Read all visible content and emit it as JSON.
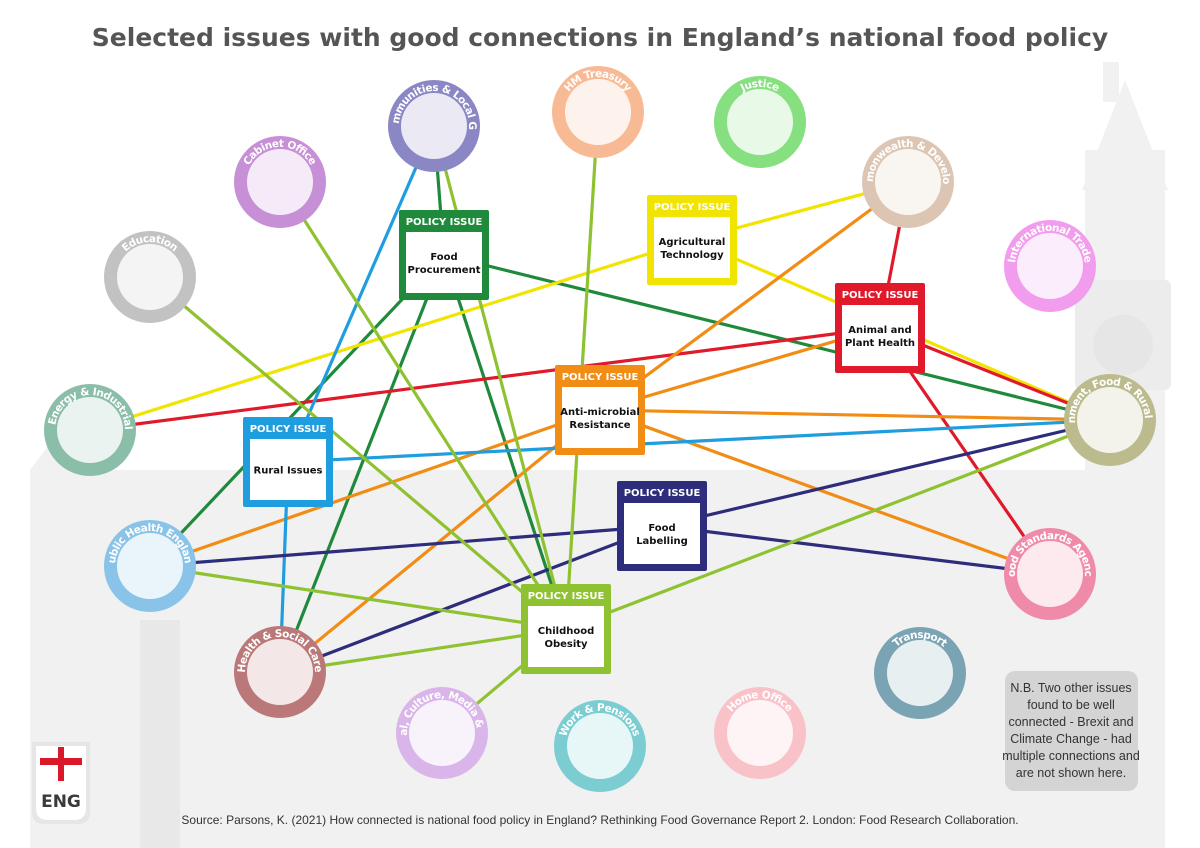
{
  "title": "Selected issues with good connections in England’s national food policy",
  "heading_label": "POLICY ISSUE",
  "departments": [
    {
      "id": "cabinet",
      "label": "Cabinet Office",
      "color": "#c78fd6"
    },
    {
      "id": "housing",
      "label": "Housing, Communities & Local Government",
      "color": "#8a87c4"
    },
    {
      "id": "treasury",
      "label": "HM Treasury",
      "color": "#f8ba94"
    },
    {
      "id": "justice",
      "label": "Justice",
      "color": "#86e07f"
    },
    {
      "id": "fcdo",
      "label": "Foreign, Commonwealth & Development Office",
      "color": "#dcc5b3"
    },
    {
      "id": "education",
      "label": "Education",
      "color": "#c2c2c2"
    },
    {
      "id": "trade",
      "label": "International Trade",
      "color": "#f19ced"
    },
    {
      "id": "beis",
      "label": "Business, Energy & Industrial Strategy",
      "color": "#8bbea8"
    },
    {
      "id": "defra",
      "label": "Environment, Food & Rural Affairs",
      "color": "#bcbb8e"
    },
    {
      "id": "phe",
      "label": "Public Health England",
      "color": "#89c3e7"
    },
    {
      "id": "fsa",
      "label": "Food Standards Agency",
      "color": "#ef8ba8"
    },
    {
      "id": "health",
      "label": "Health & Social Care",
      "color": "#bb7878"
    },
    {
      "id": "transport",
      "label": "Transport",
      "color": "#7aa4b4"
    },
    {
      "id": "dcms",
      "label": "Digital, Culture, Media & Sport",
      "color": "#d9b5e9"
    },
    {
      "id": "dwp",
      "label": "Work & Pensions",
      "color": "#7ccdd2"
    },
    {
      "id": "home",
      "label": "Home Office",
      "color": "#f9c2c8"
    }
  ],
  "issues": [
    {
      "id": "procurement",
      "label_lines": [
        "Food",
        "Procurement"
      ],
      "color": "#1f8a3b"
    },
    {
      "id": "agritech",
      "label_lines": [
        "Agricultural",
        "Technology"
      ],
      "color": "#f1e400"
    },
    {
      "id": "animal",
      "label_lines": [
        "Animal and",
        "Plant Health"
      ],
      "color": "#e01a2a"
    },
    {
      "id": "amr",
      "label_lines": [
        "Anti-microbial",
        "Resistance"
      ],
      "color": "#f18c14"
    },
    {
      "id": "rural",
      "label_lines": [
        "Rural Issues"
      ],
      "color": "#1e9ede"
    },
    {
      "id": "labelling",
      "label_lines": [
        "Food",
        "Labelling"
      ],
      "color": "#2d2d7c"
    },
    {
      "id": "obesity",
      "label_lines": [
        "Childhood",
        "Obesity"
      ],
      "color": "#8fc231"
    }
  ],
  "connections": [
    {
      "issue": "procurement",
      "dept": "housing"
    },
    {
      "issue": "procurement",
      "dept": "defra"
    },
    {
      "issue": "procurement",
      "dept": "phe"
    },
    {
      "issue": "procurement",
      "dept": "health"
    },
    {
      "issue": "procurement",
      "dept": "obesity_link"
    },
    {
      "issue": "agritech",
      "dept": "fcdo"
    },
    {
      "issue": "agritech",
      "dept": "beis"
    },
    {
      "issue": "agritech",
      "dept": "defra"
    },
    {
      "issue": "animal",
      "dept": "fcdo"
    },
    {
      "issue": "animal",
      "dept": "beis"
    },
    {
      "issue": "animal",
      "dept": "defra"
    },
    {
      "issue": "animal",
      "dept": "fsa"
    },
    {
      "issue": "amr",
      "dept": "fcdo"
    },
    {
      "issue": "amr",
      "dept": "defra"
    },
    {
      "issue": "amr",
      "dept": "fsa"
    },
    {
      "issue": "amr",
      "dept": "phe"
    },
    {
      "issue": "amr",
      "dept": "health"
    },
    {
      "issue": "amr",
      "dept": "animal_link"
    },
    {
      "issue": "rural",
      "dept": "housing"
    },
    {
      "issue": "rural",
      "dept": "defra"
    },
    {
      "issue": "rural",
      "dept": "health"
    },
    {
      "issue": "labelling",
      "dept": "phe"
    },
    {
      "issue": "labelling",
      "dept": "defra"
    },
    {
      "issue": "labelling",
      "dept": "fsa"
    },
    {
      "issue": "labelling",
      "dept": "health"
    },
    {
      "issue": "obesity",
      "dept": "cabinet"
    },
    {
      "issue": "obesity",
      "dept": "treasury"
    },
    {
      "issue": "obesity",
      "dept": "education"
    },
    {
      "issue": "obesity",
      "dept": "defra"
    },
    {
      "issue": "obesity",
      "dept": "phe"
    },
    {
      "issue": "obesity",
      "dept": "health"
    },
    {
      "issue": "obesity",
      "dept": "dcms"
    },
    {
      "issue": "obesity",
      "dept": "housing"
    }
  ],
  "note_lines": [
    "N.B. Two other issues",
    "found to be well",
    "connected - Brexit and",
    "Climate Change - had",
    "multiple connections and",
    "are not shown here."
  ],
  "source": "Source: Parsons, K. (2021) How connected is national food policy in England? Rethinking Food Governance Report 2. London: Food Research Collaboration.",
  "badge_label": "ENG",
  "colors": {
    "title": "#555555",
    "background_art": "#f2f2f2",
    "note_bg": "#d4d4d4",
    "badge_cross": "#d9182a"
  }
}
